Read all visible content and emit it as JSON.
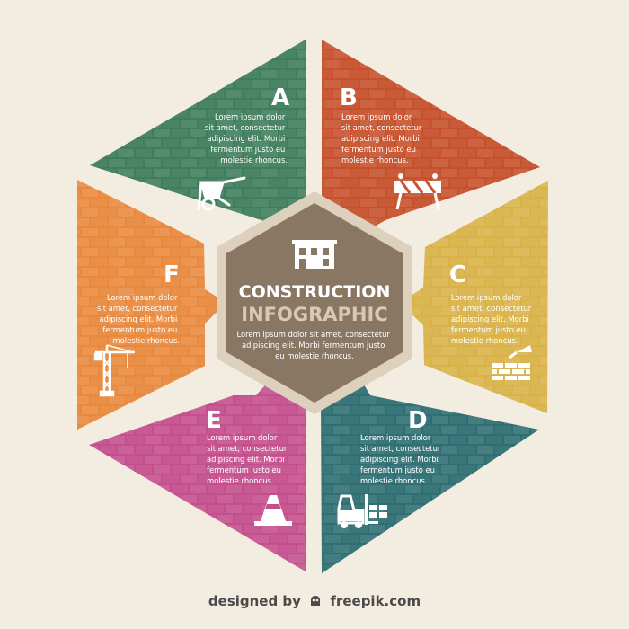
{
  "segments": [
    {
      "letter": "A",
      "lines": [
        "Lorem ipsum dolor",
        "sit amet, consectetur",
        "adipiscing elit. Morbi",
        "fermentum justo eu",
        "molestie rhoncus."
      ],
      "color": "#3f7d5d",
      "icon": "wheelbarrow-icon"
    },
    {
      "letter": "B",
      "lines": [
        "Lorem ipsum dolor",
        "sit amet, consectetur",
        "adipiscing elit. Morbi",
        "fermentum justo eu",
        "molestie rhoncus."
      ],
      "color": "#c6512c",
      "icon": "road-barrier-icon"
    },
    {
      "letter": "C",
      "lines": [
        "Lorem ipsum dolor",
        "sit amet, consectetur",
        "adipiscing elit. Morbi",
        "fermentum justo eu",
        "molestie rhoncus."
      ],
      "color": "#d9b349",
      "icon": "brick-wall-trowel-icon"
    },
    {
      "letter": "D",
      "lines": [
        "Lorem ipsum dolor",
        "sit amet, consectetur",
        "adipiscing elit. Morbi",
        "fermentum justo eu",
        "molestie rhoncus."
      ],
      "color": "#2f6e72",
      "icon": "forklift-icon"
    },
    {
      "letter": "E",
      "lines": [
        "Lorem ipsum dolor",
        "sit amet, consectetur",
        "adipiscing elit. Morbi",
        "fermentum justo eu",
        "molestie rhoncus."
      ],
      "color": "#c44f8d",
      "icon": "traffic-cone-icon"
    },
    {
      "letter": "F",
      "lines": [
        "Lorem ipsum dolor",
        "sit amet, consectetur",
        "adipiscing elit. Morbi",
        "fermentum justo eu",
        "molestie rhoncus."
      ],
      "color": "#e8893d",
      "icon": "tower-crane-icon"
    }
  ],
  "center": {
    "title": "CONSTRUCTION",
    "subtitle": "INFOGRAPHIC",
    "lines": [
      "Lorem ipsum dolor sit amet, consectetur",
      "adipiscing elit. Morbi fermentum justo",
      "eu molestie rhoncus."
    ],
    "color": "#8a7763",
    "ring_color": "#ddd0bd",
    "icon": "building-icon"
  },
  "credit": {
    "prefix": "designed by",
    "brand": "freepik.com"
  }
}
